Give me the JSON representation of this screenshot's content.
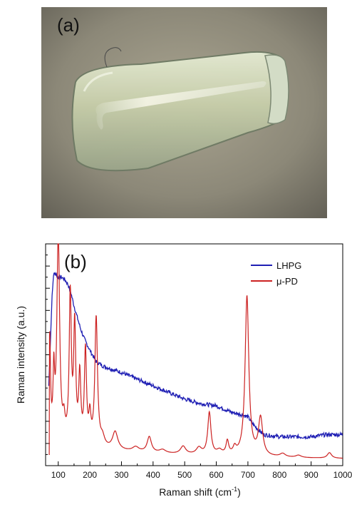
{
  "photo": {
    "panel_label": "(a)",
    "subject": "crystal-fiber-photo"
  },
  "chart_data": {
    "type": "line",
    "panel_label": "(b)",
    "xlabel": "Raman shift (cm",
    "xlabel_sup": "-1",
    "xlabel_suffix": ")",
    "ylabel": "Raman intensity (a.u.)",
    "xlim": [
      60,
      1000
    ],
    "ylim": [
      0,
      1
    ],
    "xticks": [
      100,
      200,
      300,
      400,
      500,
      600,
      700,
      800,
      900,
      1000
    ],
    "grid": false,
    "legend_position": "top-right",
    "series": [
      {
        "name": "LHPG",
        "color": "#1f1fb4",
        "x": [
          70,
          75,
          80,
          85,
          90,
          95,
          100,
          110,
          120,
          130,
          140,
          150,
          160,
          170,
          180,
          190,
          200,
          220,
          240,
          260,
          280,
          300,
          350,
          400,
          450,
          500,
          550,
          600,
          650,
          680,
          700,
          720,
          750,
          800,
          850,
          900,
          950,
          1000
        ],
        "y": [
          0.36,
          0.55,
          0.75,
          0.86,
          0.87,
          0.86,
          0.85,
          0.85,
          0.84,
          0.82,
          0.78,
          0.72,
          0.67,
          0.62,
          0.58,
          0.55,
          0.52,
          0.47,
          0.45,
          0.44,
          0.43,
          0.42,
          0.39,
          0.36,
          0.33,
          0.3,
          0.28,
          0.27,
          0.24,
          0.23,
          0.22,
          0.18,
          0.14,
          0.13,
          0.13,
          0.13,
          0.14,
          0.14
        ]
      },
      {
        "name": "μ-PD",
        "color": "#cc2222",
        "peaks": [
          {
            "x": 73,
            "h": 0.46,
            "w": 3
          },
          {
            "x": 86,
            "h": 0.28,
            "w": 3
          },
          {
            "x": 100,
            "h": 0.96,
            "w": 5
          },
          {
            "x": 118,
            "h": 0.08,
            "w": 4
          },
          {
            "x": 138,
            "h": 0.66,
            "w": 4
          },
          {
            "x": 152,
            "h": 0.52,
            "w": 4
          },
          {
            "x": 168,
            "h": 0.3,
            "w": 4
          },
          {
            "x": 186,
            "h": 0.42,
            "w": 4
          },
          {
            "x": 200,
            "h": 0.12,
            "w": 4
          },
          {
            "x": 220,
            "h": 0.58,
            "w": 5
          },
          {
            "x": 240,
            "h": 0.04,
            "w": 8
          },
          {
            "x": 280,
            "h": 0.08,
            "w": 10
          },
          {
            "x": 345,
            "h": 0.02,
            "w": 12
          },
          {
            "x": 388,
            "h": 0.07,
            "w": 8
          },
          {
            "x": 430,
            "h": 0.015,
            "w": 12
          },
          {
            "x": 495,
            "h": 0.035,
            "w": 10
          },
          {
            "x": 545,
            "h": 0.03,
            "w": 10
          },
          {
            "x": 578,
            "h": 0.19,
            "w": 6
          },
          {
            "x": 610,
            "h": 0.02,
            "w": 10
          },
          {
            "x": 635,
            "h": 0.06,
            "w": 5
          },
          {
            "x": 658,
            "h": 0.03,
            "w": 6
          },
          {
            "x": 697,
            "h": 0.72,
            "w": 7
          },
          {
            "x": 740,
            "h": 0.17,
            "w": 8
          },
          {
            "x": 810,
            "h": 0.015,
            "w": 10
          },
          {
            "x": 860,
            "h": 0.01,
            "w": 10
          },
          {
            "x": 958,
            "h": 0.025,
            "w": 8
          }
        ],
        "baseline": 0.07
      }
    ]
  }
}
